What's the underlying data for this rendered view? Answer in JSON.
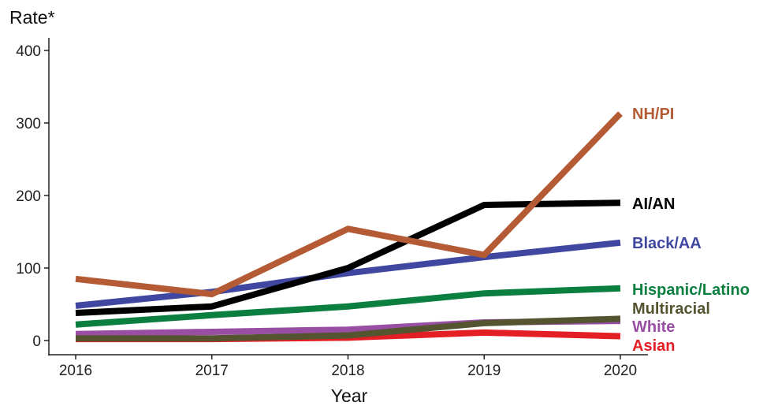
{
  "chart_data": {
    "type": "line",
    "ylabel": "Rate*",
    "xlabel": "Year",
    "x": [
      2016,
      2017,
      2018,
      2019,
      2020
    ],
    "ylim": [
      0,
      400
    ],
    "yticks": [
      0,
      100,
      200,
      300,
      400
    ],
    "grid": false,
    "legend": "direct labels at line ends (right)",
    "series": [
      {
        "name": "Asian",
        "color": "#e31e24",
        "values": [
          2,
          2,
          4,
          11,
          6
        ]
      },
      {
        "name": "White",
        "color": "#984ea3",
        "values": [
          9,
          12,
          15,
          25,
          27
        ]
      },
      {
        "name": "Multiracial",
        "color": "#545430",
        "values": [
          3,
          3,
          7,
          24,
          30
        ]
      },
      {
        "name": "Hispanic/Latino",
        "color": "#0a7f3f",
        "values": [
          22,
          35,
          47,
          65,
          72
        ]
      },
      {
        "name": "Black/AA",
        "color": "#3f47a0",
        "values": [
          48,
          67,
          93,
          115,
          135
        ]
      },
      {
        "name": "AI/AN",
        "color": "#000000",
        "values": [
          38,
          47,
          100,
          187,
          190
        ]
      },
      {
        "name": "NH/PI",
        "color": "#b45a35",
        "values": [
          85,
          64,
          154,
          118,
          313
        ]
      }
    ]
  }
}
